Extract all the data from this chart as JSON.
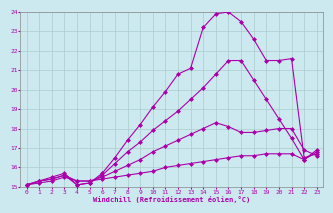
{
  "xlabel": "Windchill (Refroidissement éolien,°C)",
  "xlim": [
    -0.5,
    23.5
  ],
  "ylim": [
    15,
    24
  ],
  "xticks": [
    0,
    1,
    2,
    3,
    4,
    5,
    6,
    7,
    8,
    9,
    10,
    11,
    12,
    13,
    14,
    15,
    16,
    17,
    18,
    19,
    20,
    21,
    22,
    23
  ],
  "yticks": [
    15,
    16,
    17,
    18,
    19,
    20,
    21,
    22,
    23,
    24
  ],
  "bg_color": "#cde9f0",
  "line_color": "#aa00aa",
  "grid_color": "#aacccc",
  "lines": [
    {
      "comment": "bottom flat line - slowly rising",
      "x": [
        0,
        1,
        2,
        3,
        4,
        5,
        6,
        7,
        8,
        9,
        10,
        11,
        12,
        13,
        14,
        15,
        16,
        17,
        18,
        19,
        20,
        21,
        22,
        23
      ],
      "y": [
        15.1,
        15.2,
        15.3,
        15.5,
        15.3,
        15.3,
        15.4,
        15.5,
        15.6,
        15.7,
        15.8,
        16.0,
        16.1,
        16.2,
        16.3,
        16.4,
        16.5,
        16.6,
        16.6,
        16.7,
        16.7,
        16.7,
        16.4,
        16.8
      ]
    },
    {
      "comment": "second line - medium rise then drop",
      "x": [
        0,
        1,
        2,
        3,
        4,
        5,
        6,
        7,
        8,
        9,
        10,
        11,
        12,
        13,
        14,
        15,
        16,
        17,
        18,
        19,
        20,
        21,
        22,
        23
      ],
      "y": [
        15.1,
        15.3,
        15.4,
        15.6,
        15.3,
        15.3,
        15.5,
        15.8,
        16.1,
        16.4,
        16.8,
        17.1,
        17.4,
        17.7,
        18.0,
        18.3,
        18.1,
        17.8,
        17.8,
        17.9,
        18.0,
        18.0,
        16.9,
        16.6
      ]
    },
    {
      "comment": "third line - rises more, plateau, drops",
      "x": [
        0,
        1,
        2,
        3,
        4,
        5,
        6,
        7,
        8,
        9,
        10,
        11,
        12,
        13,
        14,
        15,
        16,
        17,
        18,
        19,
        20,
        21,
        22,
        23
      ],
      "y": [
        15.1,
        15.3,
        15.4,
        15.6,
        15.1,
        15.2,
        15.6,
        16.2,
        16.8,
        17.3,
        17.9,
        18.4,
        18.9,
        19.5,
        20.1,
        20.8,
        21.5,
        21.5,
        20.5,
        19.5,
        18.5,
        17.5,
        16.4,
        16.9
      ]
    },
    {
      "comment": "top line - sharp peak around x=15-16, then drops",
      "x": [
        0,
        1,
        2,
        3,
        4,
        5,
        6,
        7,
        8,
        9,
        10,
        11,
        12,
        13,
        14,
        15,
        16,
        17,
        18,
        19,
        20,
        21,
        22,
        23
      ],
      "y": [
        15.1,
        15.3,
        15.5,
        15.7,
        15.1,
        15.2,
        15.7,
        16.5,
        17.4,
        18.2,
        19.1,
        19.9,
        20.8,
        21.1,
        23.2,
        23.9,
        24.0,
        23.5,
        22.6,
        21.5,
        21.5,
        21.6,
        16.5,
        16.7
      ]
    }
  ]
}
